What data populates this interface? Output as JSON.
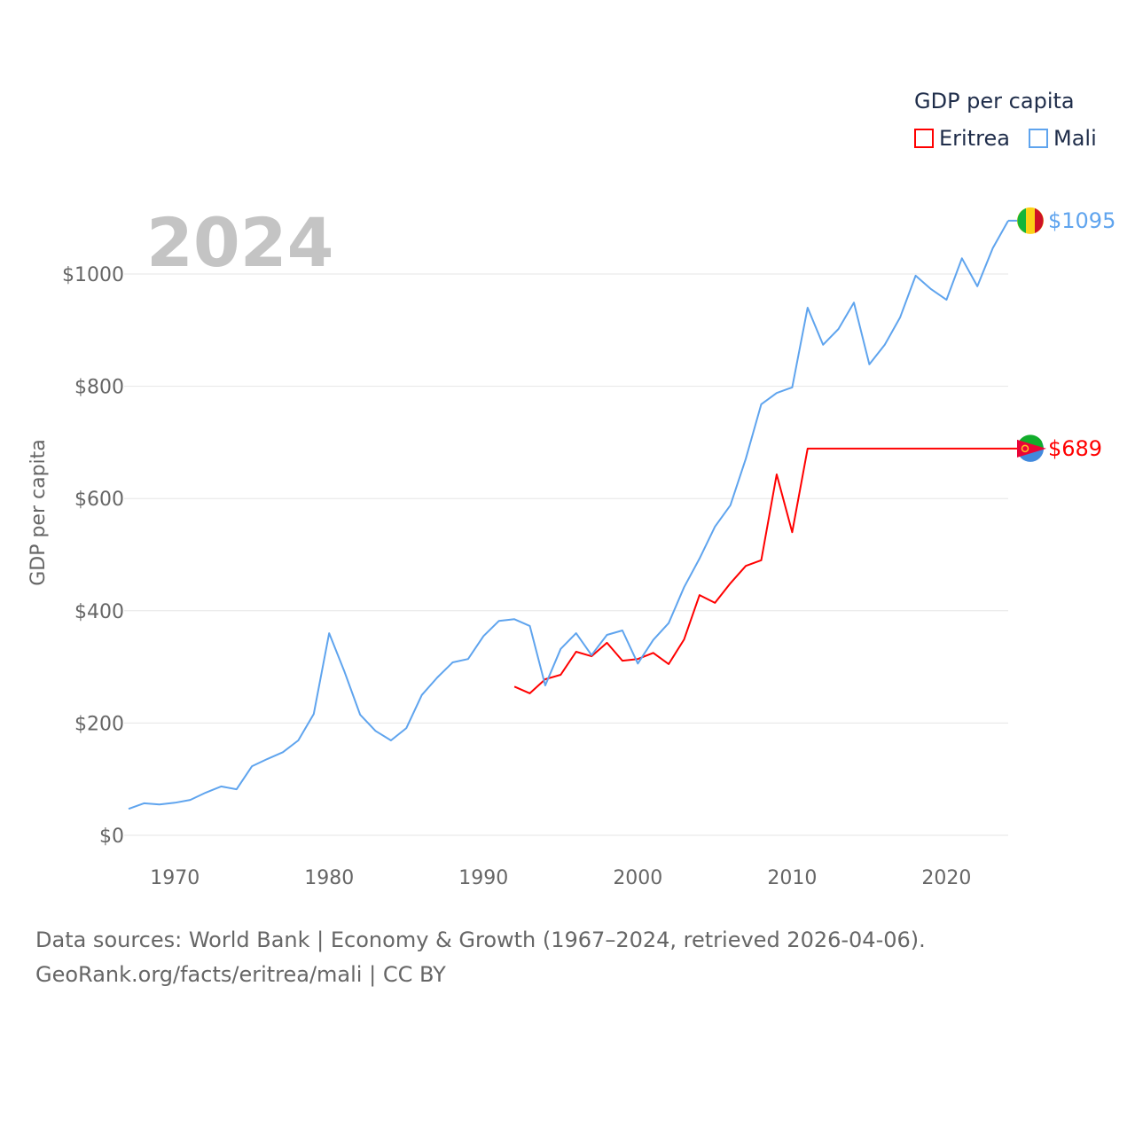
{
  "chart_data": {
    "type": "line",
    "title": "GDP per capita",
    "year_label": "2024",
    "ylabel": "GDP per capita",
    "xlabel": "",
    "xlim": [
      1967,
      2024
    ],
    "ylim": [
      0,
      1100
    ],
    "x_ticks": [
      1970,
      1980,
      1990,
      2000,
      2010,
      2020
    ],
    "y_ticks": [
      0,
      200,
      400,
      600,
      800,
      1000
    ],
    "y_tick_labels": [
      "$0",
      "$200",
      "$400",
      "$600",
      "$800",
      "$1000"
    ],
    "grid": true,
    "legend_placement": "top-right",
    "series": [
      {
        "name": "Eritrea",
        "color": "#ff0000",
        "end_label": "$689",
        "start_year": 1992,
        "values": [
          265,
          253,
          278,
          286,
          327,
          319,
          343,
          311,
          314,
          325,
          305,
          349,
          428,
          414,
          449,
          480,
          490,
          643,
          540,
          689,
          689,
          689,
          689,
          689,
          689,
          689,
          689,
          689,
          689,
          689,
          689,
          689,
          689
        ]
      },
      {
        "name": "Mali",
        "color": "#5fa4ee",
        "end_label": "$1095",
        "start_year": 1967,
        "values": [
          47,
          57,
          55,
          58,
          63,
          76,
          87,
          82,
          123,
          136,
          148,
          169,
          216,
          360,
          291,
          215,
          186,
          169,
          191,
          250,
          281,
          308,
          314,
          355,
          382,
          385,
          373,
          267,
          332,
          360,
          321,
          357,
          365,
          306,
          348,
          378,
          442,
          493,
          550,
          588,
          671,
          768,
          788,
          798,
          940,
          874,
          902,
          949,
          839,
          874,
          923,
          997,
          973,
          954,
          1028,
          978,
          1046,
          1095
        ]
      }
    ]
  },
  "footer": {
    "line1": "Data sources: World Bank | Economy & Growth (1967–2024, retrieved 2026-04-06).",
    "line2": "GeoRank.org/facts/eritrea/mali | CC BY"
  }
}
